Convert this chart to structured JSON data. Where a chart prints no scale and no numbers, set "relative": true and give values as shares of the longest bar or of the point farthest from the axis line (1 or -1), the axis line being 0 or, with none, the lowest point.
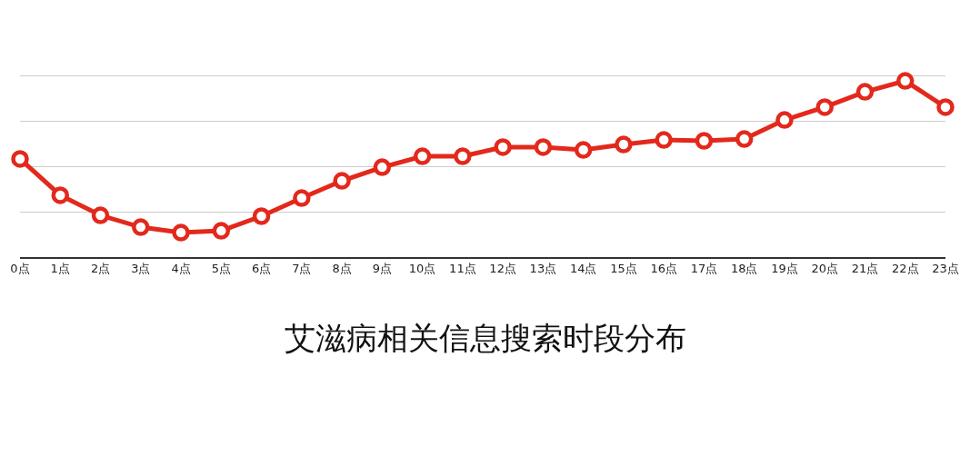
{
  "chart_data": {
    "type": "line",
    "title": "艾滋病相关信息搜索时段分布",
    "categories": [
      "0点",
      "1点",
      "2点",
      "3点",
      "4点",
      "5点",
      "6点",
      "7点",
      "8点",
      "9点",
      "10点",
      "11点",
      "12点",
      "13点",
      "14点",
      "15点",
      "16点",
      "17点",
      "18点",
      "19点",
      "20点",
      "21点",
      "22点",
      "23点"
    ],
    "series": [
      {
        "color": "#e3281c",
        "values": [
          0.557,
          0.351,
          0.237,
          0.17,
          0.139,
          0.149,
          0.232,
          0.335,
          0.433,
          0.51,
          0.572,
          0.572,
          0.624,
          0.624,
          0.608,
          0.639,
          0.665,
          0.66,
          0.67,
          0.778,
          0.851,
          0.938,
          1,
          0.851
        ]
      }
    ],
    "relative": true,
    "grid": "y",
    "legend": false,
    "marker": "circle",
    "line_style": "solid"
  }
}
